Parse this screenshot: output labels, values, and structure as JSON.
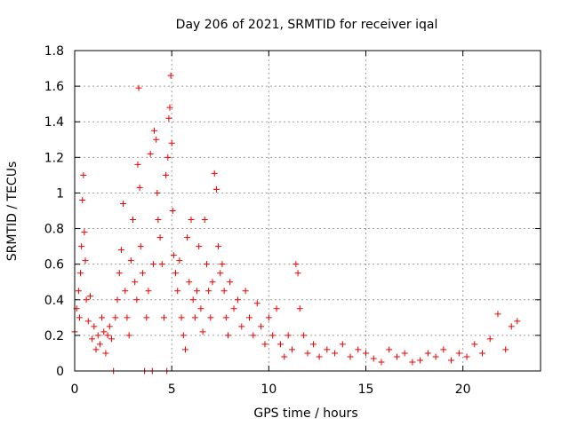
{
  "chart_data": {
    "type": "scatter",
    "title": "Day 206 of 2021, SRMTID for receiver iqal",
    "xlabel": "GPS time / hours",
    "ylabel": "SRMTID / TECUs",
    "xlim": [
      0,
      24
    ],
    "ylim": [
      0,
      1.8
    ],
    "x_ticks": [
      0,
      5,
      10,
      15,
      20
    ],
    "x_tick_labels": [
      "0",
      "5",
      "10",
      "15",
      "20"
    ],
    "y_ticks": [
      0,
      0.2,
      0.4,
      0.6,
      0.8,
      1,
      1.2,
      1.4,
      1.6,
      1.8
    ],
    "y_tick_labels": [
      "0",
      "0.2",
      "0.4",
      "0.6",
      "0.8",
      "1",
      "1.2",
      "1.4",
      "1.6",
      "1.8"
    ],
    "grid": true,
    "marker": "plus",
    "color": "#ee0000",
    "series": [
      {
        "name": "SRMTID",
        "points": [
          [
            0.0,
            0.22
          ],
          [
            0.1,
            0.35
          ],
          [
            0.2,
            0.45
          ],
          [
            0.25,
            0.3
          ],
          [
            0.3,
            0.55
          ],
          [
            0.35,
            0.7
          ],
          [
            0.4,
            0.96
          ],
          [
            0.45,
            1.1
          ],
          [
            0.5,
            0.78
          ],
          [
            0.55,
            0.62
          ],
          [
            0.6,
            0.4
          ],
          [
            0.7,
            0.28
          ],
          [
            0.8,
            0.42
          ],
          [
            0.9,
            0.18
          ],
          [
            1.0,
            0.25
          ],
          [
            1.1,
            0.12
          ],
          [
            1.2,
            0.2
          ],
          [
            1.3,
            0.15
          ],
          [
            1.4,
            0.3
          ],
          [
            1.5,
            0.22
          ],
          [
            1.6,
            0.1
          ],
          [
            1.7,
            0.2
          ],
          [
            1.8,
            0.25
          ],
          [
            1.9,
            0.18
          ],
          [
            2.0,
            0.0
          ],
          [
            2.1,
            0.3
          ],
          [
            2.2,
            0.4
          ],
          [
            2.3,
            0.55
          ],
          [
            2.4,
            0.68
          ],
          [
            2.5,
            0.94
          ],
          [
            2.6,
            0.45
          ],
          [
            2.7,
            0.3
          ],
          [
            2.8,
            0.2
          ],
          [
            2.9,
            0.62
          ],
          [
            3.0,
            0.85
          ],
          [
            3.1,
            0.5
          ],
          [
            3.2,
            0.4
          ],
          [
            3.25,
            1.16
          ],
          [
            3.3,
            1.59
          ],
          [
            3.35,
            1.03
          ],
          [
            3.4,
            0.7
          ],
          [
            3.5,
            0.55
          ],
          [
            3.6,
            0.0
          ],
          [
            3.7,
            0.3
          ],
          [
            3.8,
            0.45
          ],
          [
            3.9,
            1.22
          ],
          [
            4.0,
            0.0
          ],
          [
            4.05,
            0.6
          ],
          [
            4.1,
            1.35
          ],
          [
            4.2,
            1.3
          ],
          [
            4.25,
            1.0
          ],
          [
            4.3,
            0.85
          ],
          [
            4.4,
            0.75
          ],
          [
            4.5,
            0.6
          ],
          [
            4.6,
            0.3
          ],
          [
            4.7,
            1.1
          ],
          [
            4.75,
            0.0
          ],
          [
            4.8,
            1.2
          ],
          [
            4.85,
            1.42
          ],
          [
            4.9,
            1.48
          ],
          [
            4.95,
            1.66
          ],
          [
            5.0,
            1.28
          ],
          [
            5.05,
            0.9
          ],
          [
            5.1,
            0.65
          ],
          [
            5.2,
            0.55
          ],
          [
            5.3,
            0.45
          ],
          [
            5.4,
            0.62
          ],
          [
            5.5,
            0.3
          ],
          [
            5.6,
            0.2
          ],
          [
            5.7,
            0.12
          ],
          [
            5.8,
            0.75
          ],
          [
            5.9,
            0.5
          ],
          [
            6.0,
            0.85
          ],
          [
            6.1,
            0.4
          ],
          [
            6.2,
            0.3
          ],
          [
            6.3,
            0.45
          ],
          [
            6.4,
            0.7
          ],
          [
            6.5,
            0.35
          ],
          [
            6.6,
            0.22
          ],
          [
            6.7,
            0.85
          ],
          [
            6.8,
            0.6
          ],
          [
            6.9,
            0.45
          ],
          [
            7.0,
            0.3
          ],
          [
            7.1,
            0.5
          ],
          [
            7.2,
            1.11
          ],
          [
            7.3,
            1.02
          ],
          [
            7.4,
            0.7
          ],
          [
            7.5,
            0.55
          ],
          [
            7.6,
            0.6
          ],
          [
            7.7,
            0.45
          ],
          [
            7.8,
            0.3
          ],
          [
            7.9,
            0.2
          ],
          [
            8.0,
            0.5
          ],
          [
            8.2,
            0.35
          ],
          [
            8.4,
            0.4
          ],
          [
            8.6,
            0.25
          ],
          [
            8.8,
            0.45
          ],
          [
            9.0,
            0.3
          ],
          [
            9.2,
            0.2
          ],
          [
            9.4,
            0.38
          ],
          [
            9.6,
            0.25
          ],
          [
            9.8,
            0.15
          ],
          [
            10.0,
            0.3
          ],
          [
            10.2,
            0.2
          ],
          [
            10.4,
            0.35
          ],
          [
            10.6,
            0.15
          ],
          [
            10.8,
            0.08
          ],
          [
            11.0,
            0.2
          ],
          [
            11.2,
            0.12
          ],
          [
            11.4,
            0.6
          ],
          [
            11.5,
            0.55
          ],
          [
            11.6,
            0.35
          ],
          [
            11.8,
            0.2
          ],
          [
            12.0,
            0.1
          ],
          [
            12.3,
            0.15
          ],
          [
            12.6,
            0.08
          ],
          [
            13.0,
            0.12
          ],
          [
            13.4,
            0.1
          ],
          [
            13.8,
            0.15
          ],
          [
            14.2,
            0.08
          ],
          [
            14.6,
            0.12
          ],
          [
            15.0,
            0.1
          ],
          [
            15.4,
            0.07
          ],
          [
            15.8,
            0.05
          ],
          [
            16.2,
            0.12
          ],
          [
            16.6,
            0.08
          ],
          [
            17.0,
            0.1
          ],
          [
            17.4,
            0.05
          ],
          [
            17.8,
            0.06
          ],
          [
            18.2,
            0.1
          ],
          [
            18.6,
            0.08
          ],
          [
            19.0,
            0.12
          ],
          [
            19.4,
            0.06
          ],
          [
            19.8,
            0.1
          ],
          [
            20.2,
            0.08
          ],
          [
            20.6,
            0.15
          ],
          [
            21.0,
            0.1
          ],
          [
            21.4,
            0.18
          ],
          [
            21.8,
            0.32
          ],
          [
            22.2,
            0.12
          ],
          [
            22.5,
            0.25
          ],
          [
            22.8,
            0.28
          ]
        ]
      }
    ]
  }
}
